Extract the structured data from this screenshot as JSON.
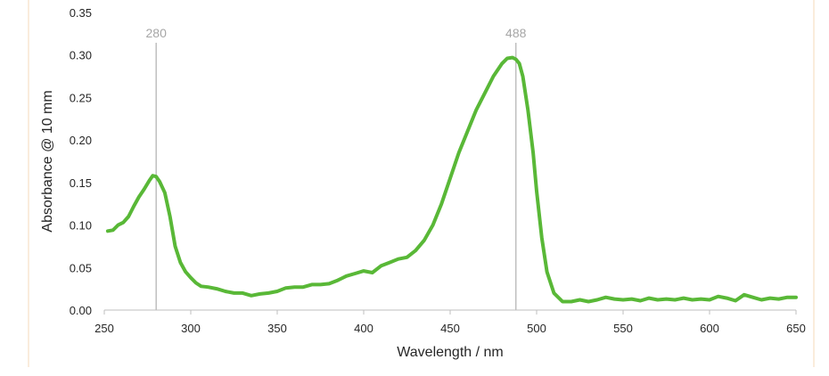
{
  "chart_data": {
    "type": "line",
    "title": "",
    "xlabel": "Wavelength / nm",
    "ylabel": "Absorbance @ 10 mm",
    "xlim": [
      250,
      650
    ],
    "ylim": [
      0,
      0.35
    ],
    "x_ticks": [
      250,
      300,
      350,
      400,
      450,
      500,
      550,
      600,
      650
    ],
    "x_tick_labels": [
      "250",
      "300",
      "350",
      "400",
      "450",
      "500",
      "550",
      "600",
      "650"
    ],
    "y_ticks": [
      0,
      0.05,
      0.1,
      0.15,
      0.2,
      0.25,
      0.3,
      0.35
    ],
    "y_tick_labels": [
      "0.00",
      "0.05",
      "0.10",
      "0.15",
      "0.20",
      "0.25",
      "0.30",
      "0.35"
    ],
    "grid": false,
    "legend": "none",
    "colors": {
      "series": "#59b837",
      "marker_line": "#bfbfbf",
      "axis": "#bfbfbf",
      "text": "#262626",
      "annotation_text": "#a6a6a6",
      "frame_border": "#f6d8b8"
    },
    "series": [
      {
        "x": [
          252,
          255,
          258,
          261,
          264,
          267,
          270,
          273,
          276,
          278,
          280,
          282,
          285,
          288,
          291,
          294,
          297,
          300,
          303,
          306,
          310,
          315,
          320,
          325,
          330,
          335,
          340,
          345,
          350,
          355,
          360,
          365,
          370,
          375,
          380,
          385,
          390,
          395,
          400,
          405,
          410,
          415,
          420,
          425,
          430,
          435,
          440,
          445,
          450,
          455,
          460,
          465,
          470,
          475,
          480,
          483,
          486,
          488,
          490,
          492,
          495,
          498,
          500,
          503,
          506,
          510,
          515,
          520,
          525,
          530,
          535,
          540,
          545,
          550,
          555,
          560,
          565,
          570,
          575,
          580,
          585,
          590,
          595,
          600,
          605,
          610,
          615,
          620,
          625,
          630,
          635,
          640,
          645,
          650
        ],
        "y": [
          0.093,
          0.094,
          0.1,
          0.103,
          0.11,
          0.122,
          0.133,
          0.142,
          0.152,
          0.158,
          0.157,
          0.151,
          0.138,
          0.11,
          0.075,
          0.056,
          0.045,
          0.038,
          0.032,
          0.028,
          0.027,
          0.025,
          0.022,
          0.02,
          0.02,
          0.017,
          0.019,
          0.02,
          0.022,
          0.026,
          0.027,
          0.027,
          0.03,
          0.03,
          0.031,
          0.035,
          0.04,
          0.043,
          0.046,
          0.044,
          0.052,
          0.056,
          0.06,
          0.062,
          0.07,
          0.082,
          0.1,
          0.125,
          0.155,
          0.185,
          0.21,
          0.235,
          0.255,
          0.275,
          0.29,
          0.296,
          0.297,
          0.295,
          0.29,
          0.275,
          0.235,
          0.185,
          0.14,
          0.085,
          0.045,
          0.02,
          0.01,
          0.01,
          0.012,
          0.01,
          0.012,
          0.015,
          0.013,
          0.012,
          0.013,
          0.011,
          0.014,
          0.012,
          0.013,
          0.012,
          0.014,
          0.012,
          0.013,
          0.012,
          0.016,
          0.014,
          0.011,
          0.018,
          0.015,
          0.012,
          0.014,
          0.013,
          0.015,
          0.015
        ]
      }
    ],
    "annotations": [
      {
        "x": 280,
        "label": "280"
      },
      {
        "x": 488,
        "label": "488"
      }
    ]
  }
}
